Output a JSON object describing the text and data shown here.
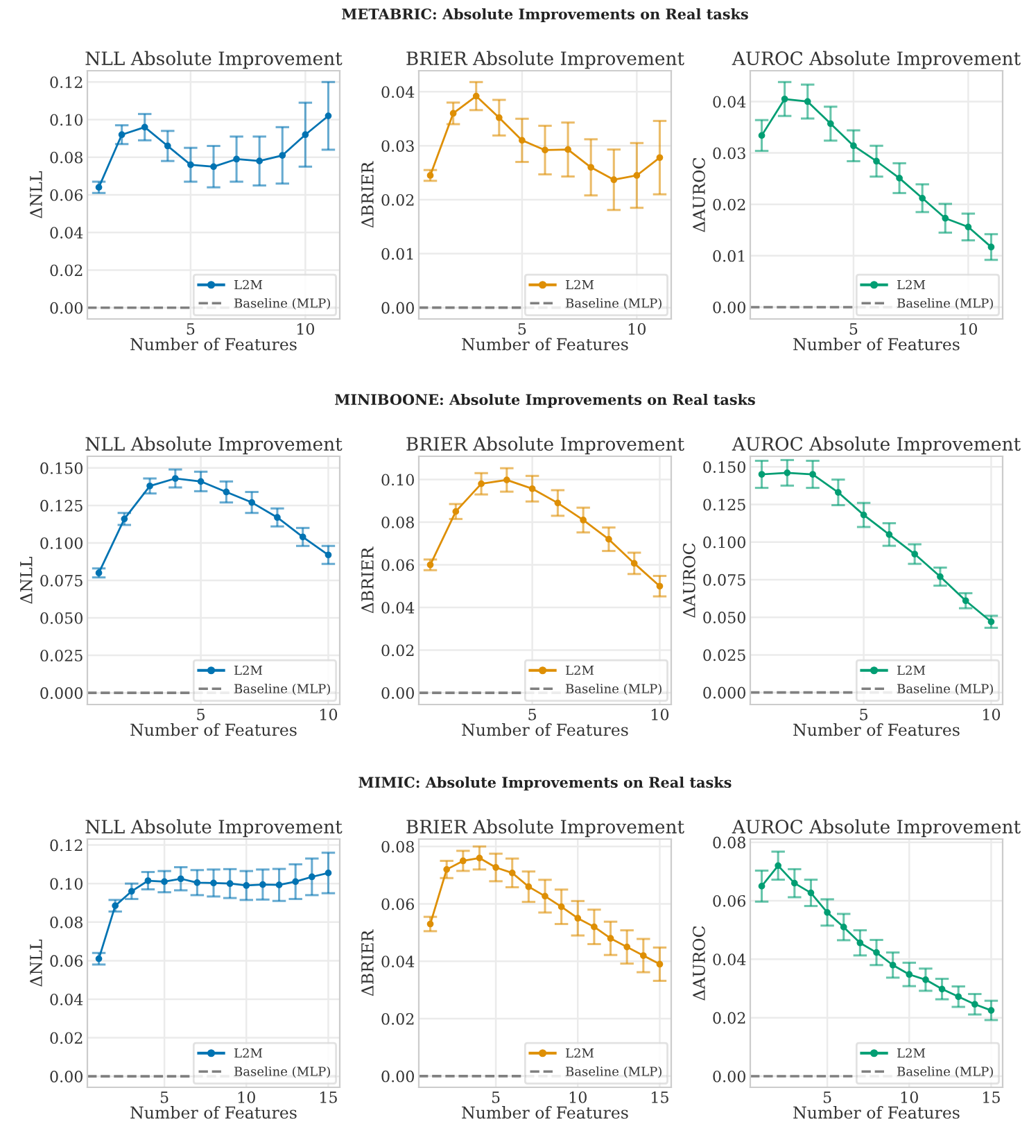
{
  "chart_data": [
    {
      "type": "line",
      "title": "NLL Absolute Improvement",
      "xlabel": "Number of Features",
      "ylabel": "ΔNLL",
      "x": [
        1,
        2,
        3,
        4,
        5,
        6,
        7,
        8,
        9,
        10,
        11
      ],
      "series": [
        {
          "name": "L2M",
          "color": "#0173b2",
          "values": [
            0.064,
            0.092,
            0.096,
            0.086,
            0.076,
            0.075,
            0.079,
            0.078,
            0.081,
            0.092,
            0.102
          ],
          "errors": [
            0.003,
            0.005,
            0.007,
            0.008,
            0.009,
            0.011,
            0.012,
            0.013,
            0.015,
            0.017,
            0.018
          ]
        }
      ],
      "xlim": [
        0.5,
        11.5
      ],
      "ylim": [
        -0.006,
        0.126
      ],
      "xticks": [
        5,
        10
      ],
      "yticks": [
        {
          "value": 0,
          "label": "0.00"
        },
        0.02,
        0.04,
        0.06,
        0.08,
        {
          "value": 0.1,
          "label": "0.10"
        },
        0.12
      ],
      "ref_lines": [
        {
          "axis": "y",
          "value": 0,
          "label": "Baseline (MLP)",
          "color": "#808080",
          "line_style": "dashed"
        }
      ],
      "grid": true,
      "legend": "lower right",
      "marker": "circle"
    },
    {
      "type": "line",
      "title": "BRIER Absolute Improvement",
      "xlabel": "Number of Features",
      "ylabel": "ΔBRIER",
      "x": [
        1,
        2,
        3,
        4,
        5,
        6,
        7,
        8,
        9,
        10,
        11
      ],
      "series": [
        {
          "name": "L2M",
          "color": "#de8f05",
          "values": [
            0.0245,
            0.036,
            0.0392,
            0.0352,
            0.031,
            0.0292,
            0.0293,
            0.026,
            0.0237,
            0.0245,
            0.0278
          ],
          "errors": [
            0.001,
            0.002,
            0.0026,
            0.0033,
            0.004,
            0.0045,
            0.005,
            0.0052,
            0.0056,
            0.006,
            0.0068
          ]
        }
      ],
      "xlim": [
        0.5,
        11.5
      ],
      "ylim": [
        -0.0021,
        0.0439
      ],
      "xticks": [
        5,
        10
      ],
      "yticks": [
        {
          "value": 0,
          "label": "0.00"
        },
        0.01,
        0.02,
        0.03,
        0.04
      ],
      "ref_lines": [
        {
          "axis": "y",
          "value": 0,
          "label": "Baseline (MLP)",
          "color": "#808080",
          "line_style": "dashed"
        }
      ],
      "grid": true,
      "legend": "lower right",
      "marker": "circle",
      "annotations": [
        "METABRIC: Absolute Improvements on Real tasks"
      ]
    },
    {
      "type": "line",
      "title": "AUROC Absolute Improvement",
      "xlabel": "Number of Features",
      "ylabel": "ΔAUROC",
      "x": [
        1,
        2,
        3,
        4,
        5,
        6,
        7,
        8,
        9,
        10,
        11
      ],
      "series": [
        {
          "name": "L2M",
          "color": "#029e73",
          "values": [
            0.0334,
            0.0405,
            0.04,
            0.0357,
            0.0314,
            0.0284,
            0.0251,
            0.0212,
            0.0173,
            0.0156,
            0.0117
          ],
          "errors": [
            0.003,
            0.0033,
            0.0033,
            0.0033,
            0.003,
            0.003,
            0.0029,
            0.0027,
            0.0028,
            0.0026,
            0.0025
          ]
        }
      ],
      "xlim": [
        0.5,
        11.5
      ],
      "ylim": [
        -0.0023,
        0.046
      ],
      "xticks": [
        5,
        10
      ],
      "yticks": [
        {
          "value": 0,
          "label": "0.00"
        },
        0.01,
        0.02,
        0.03,
        0.04
      ],
      "ref_lines": [
        {
          "axis": "y",
          "value": 0,
          "label": "Baseline (MLP)",
          "color": "#808080",
          "line_style": "dashed"
        }
      ],
      "grid": true,
      "legend": "lower right",
      "marker": "circle"
    },
    {
      "type": "line",
      "title": "NLL Absolute Improvement",
      "xlabel": "Number of Features",
      "ylabel": "ΔNLL",
      "x": [
        1,
        2,
        3,
        4,
        5,
        6,
        7,
        8,
        9,
        10
      ],
      "series": [
        {
          "name": "L2M",
          "color": "#0173b2",
          "values": [
            0.08,
            0.116,
            0.138,
            0.143,
            0.141,
            0.134,
            0.127,
            0.117,
            0.104,
            0.092
          ],
          "errors": [
            0.003,
            0.004,
            0.005,
            0.006,
            0.0065,
            0.007,
            0.007,
            0.006,
            0.006,
            0.006
          ]
        }
      ],
      "xlim": [
        0.55,
        10.45
      ],
      "ylim": [
        -0.0078,
        0.1578
      ],
      "xticks": [
        5,
        10
      ],
      "yticks": [
        {
          "value": 0,
          "label": "0.000"
        },
        {
          "value": 0.025,
          "label": "0.025"
        },
        {
          "value": 0.05,
          "label": "0.050"
        },
        {
          "value": 0.075,
          "label": "0.075"
        },
        {
          "value": 0.1,
          "label": "0.100"
        },
        {
          "value": 0.125,
          "label": "0.125"
        },
        {
          "value": 0.15,
          "label": "0.150"
        }
      ],
      "ref_lines": [
        {
          "axis": "y",
          "value": 0,
          "label": "Baseline (MLP)",
          "color": "#808080",
          "line_style": "dashed"
        }
      ],
      "grid": true,
      "legend": "lower right",
      "marker": "circle"
    },
    {
      "type": "line",
      "title": "BRIER Absolute Improvement",
      "xlabel": "Number of Features",
      "ylabel": "ΔBRIER",
      "x": [
        1,
        2,
        3,
        4,
        5,
        6,
        7,
        8,
        9,
        10
      ],
      "series": [
        {
          "name": "L2M",
          "color": "#de8f05",
          "values": [
            0.06,
            0.085,
            0.098,
            0.0998,
            0.0957,
            0.089,
            0.081,
            0.072,
            0.0607,
            0.05
          ],
          "errors": [
            0.0025,
            0.0035,
            0.005,
            0.0055,
            0.006,
            0.006,
            0.0058,
            0.0055,
            0.005,
            0.0048
          ]
        }
      ],
      "xlim": [
        0.55,
        10.45
      ],
      "ylim": [
        -0.0055,
        0.1109
      ],
      "xticks": [
        5,
        10
      ],
      "yticks": [
        {
          "value": 0,
          "label": "0.00"
        },
        0.02,
        0.04,
        0.06,
        0.08,
        {
          "value": 0.1,
          "label": "0.10"
        }
      ],
      "ref_lines": [
        {
          "axis": "y",
          "value": 0,
          "label": "Baseline (MLP)",
          "color": "#808080",
          "line_style": "dashed"
        }
      ],
      "grid": true,
      "legend": "lower right",
      "marker": "circle",
      "annotations": [
        "MINIBOONE: Absolute Improvements on Real tasks"
      ]
    },
    {
      "type": "line",
      "title": "AUROC Absolute Improvement",
      "xlabel": "Number of Features",
      "ylabel": "ΔAUROC",
      "x": [
        1,
        2,
        3,
        4,
        5,
        6,
        7,
        8,
        9,
        10
      ],
      "series": [
        {
          "name": "L2M",
          "color": "#029e73",
          "values": [
            0.145,
            0.146,
            0.145,
            0.133,
            0.118,
            0.105,
            0.092,
            0.077,
            0.061,
            0.047
          ],
          "errors": [
            0.009,
            0.0085,
            0.009,
            0.0085,
            0.008,
            0.0075,
            0.0065,
            0.006,
            0.005,
            0.004
          ]
        }
      ],
      "xlim": [
        0.55,
        10.45
      ],
      "ylim": [
        -0.008,
        0.157
      ],
      "xticks": [
        5,
        10
      ],
      "yticks": [
        {
          "value": 0,
          "label": "0.000"
        },
        {
          "value": 0.025,
          "label": "0.025"
        },
        {
          "value": 0.05,
          "label": "0.050"
        },
        {
          "value": 0.075,
          "label": "0.075"
        },
        {
          "value": 0.1,
          "label": "0.100"
        },
        {
          "value": 0.125,
          "label": "0.125"
        },
        {
          "value": 0.15,
          "label": "0.150"
        }
      ],
      "ref_lines": [
        {
          "axis": "y",
          "value": 0,
          "label": "Baseline (MLP)",
          "color": "#808080",
          "line_style": "dashed"
        }
      ],
      "grid": true,
      "legend": "lower right",
      "marker": "circle"
    },
    {
      "type": "line",
      "title": "NLL Absolute Improvement",
      "xlabel": "Number of Features",
      "ylabel": "ΔNLL",
      "x": [
        1,
        2,
        3,
        4,
        5,
        6,
        7,
        8,
        9,
        10,
        11,
        12,
        13,
        14,
        15
      ],
      "series": [
        {
          "name": "L2M",
          "color": "#0173b2",
          "values": [
            0.061,
            0.0885,
            0.096,
            0.1015,
            0.101,
            0.1025,
            0.1005,
            0.1003,
            0.1,
            0.099,
            0.0995,
            0.0993,
            0.101,
            0.1035,
            0.1055
          ],
          "errors": [
            0.003,
            0.003,
            0.004,
            0.0045,
            0.0055,
            0.006,
            0.0065,
            0.007,
            0.0075,
            0.0075,
            0.0078,
            0.0083,
            0.009,
            0.0095,
            0.0105
          ]
        }
      ],
      "xlim": [
        0.3,
        15.7
      ],
      "ylim": [
        -0.0057,
        0.1231
      ],
      "xticks": [
        5,
        10,
        15
      ],
      "yticks": [
        {
          "value": 0,
          "label": "0.00"
        },
        0.02,
        0.04,
        0.06,
        0.08,
        {
          "value": 0.1,
          "label": "0.10"
        },
        0.12
      ],
      "ref_lines": [
        {
          "axis": "y",
          "value": 0,
          "label": "Baseline (MLP)",
          "color": "#808080",
          "line_style": "dashed"
        }
      ],
      "grid": true,
      "legend": "lower right",
      "marker": "circle"
    },
    {
      "type": "line",
      "title": "BRIER Absolute Improvement",
      "xlabel": "Number of Features",
      "ylabel": "ΔBRIER",
      "x": [
        1,
        2,
        3,
        4,
        5,
        6,
        7,
        8,
        9,
        10,
        11,
        12,
        13,
        14,
        15
      ],
      "series": [
        {
          "name": "L2M",
          "color": "#de8f05",
          "values": [
            0.053,
            0.072,
            0.075,
            0.076,
            0.0727,
            0.0708,
            0.066,
            0.0627,
            0.059,
            0.055,
            0.052,
            0.048,
            0.045,
            0.042,
            0.039
          ],
          "errors": [
            0.0025,
            0.003,
            0.0035,
            0.004,
            0.0048,
            0.005,
            0.0053,
            0.0057,
            0.006,
            0.006,
            0.006,
            0.0058,
            0.0058,
            0.0058,
            0.0058
          ]
        }
      ],
      "xlim": [
        0.3,
        15.7
      ],
      "ylim": [
        -0.0039,
        0.0826
      ],
      "xticks": [
        5,
        10,
        15
      ],
      "yticks": [
        {
          "value": 0,
          "label": "0.00"
        },
        0.02,
        0.04,
        0.06,
        0.08
      ],
      "ref_lines": [
        {
          "axis": "y",
          "value": 0,
          "label": "Baseline (MLP)",
          "color": "#808080",
          "line_style": "dashed"
        }
      ],
      "grid": true,
      "legend": "lower right",
      "marker": "circle",
      "annotations": [
        "MIMIC: Absolute Improvements on Real tasks"
      ]
    },
    {
      "type": "line",
      "title": "AUROC Absolute Improvement",
      "xlabel": "Number of Features",
      "ylabel": "ΔAUROC",
      "x": [
        1,
        2,
        3,
        4,
        5,
        6,
        7,
        8,
        9,
        10,
        11,
        12,
        13,
        14,
        15
      ],
      "series": [
        {
          "name": "L2M",
          "color": "#029e73",
          "values": [
            0.065,
            0.072,
            0.066,
            0.0627,
            0.056,
            0.051,
            0.0456,
            0.0423,
            0.038,
            0.0348,
            0.033,
            0.0298,
            0.0272,
            0.0246,
            0.0225
          ],
          "errors": [
            0.0053,
            0.0048,
            0.0048,
            0.0045,
            0.0045,
            0.0045,
            0.0043,
            0.0043,
            0.0043,
            0.004,
            0.0038,
            0.0035,
            0.0035,
            0.0035,
            0.0033
          ]
        }
      ],
      "xlim": [
        0.3,
        15.7
      ],
      "ylim": [
        -0.0038,
        0.0811
      ],
      "xticks": [
        5,
        10,
        15
      ],
      "yticks": [
        {
          "value": 0,
          "label": "0.00"
        },
        0.02,
        0.04,
        0.06,
        0.08
      ],
      "ref_lines": [
        {
          "axis": "y",
          "value": 0,
          "label": "Baseline (MLP)",
          "color": "#808080",
          "line_style": "dashed"
        }
      ],
      "grid": true,
      "legend": "lower right",
      "marker": "circle"
    }
  ]
}
